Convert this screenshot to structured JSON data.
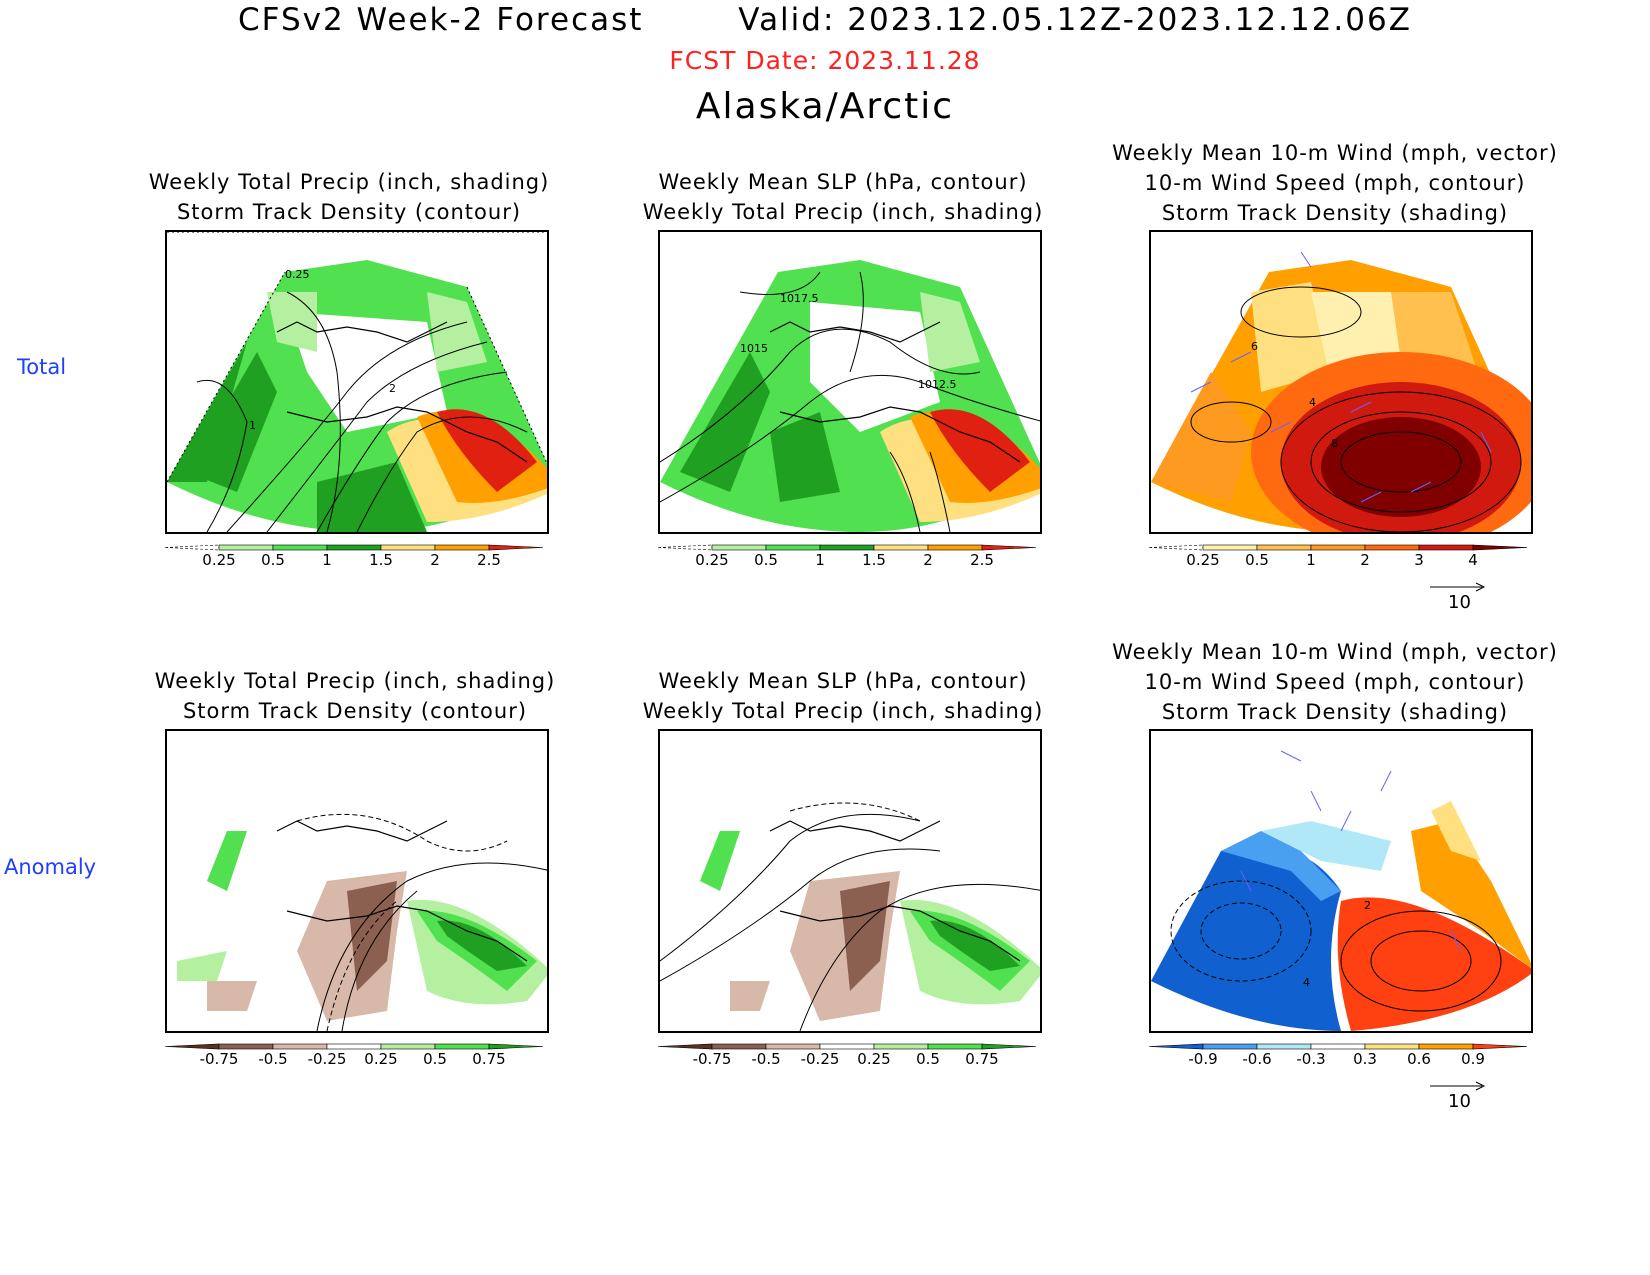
{
  "header": {
    "title_left": "CFSv2 Week-2 Forecast",
    "title_right": "Valid: 2023.12.05.12Z-2023.12.12.06Z",
    "fcst_date": "FCST Date: 2023.11.28",
    "region": "Alaska/Arctic"
  },
  "rows": {
    "total": "Total",
    "anomaly": "Anomaly"
  },
  "panels": {
    "total_precip": {
      "line1": "Weekly Total Precip (inch, shading)",
      "line2": "Storm Track Density (contour)",
      "labels": [
        "0.25",
        "2",
        "1"
      ]
    },
    "total_slp": {
      "line1": "Weekly Mean SLP (hPa, contour)",
      "line2": "Weekly Total Precip (inch, shading)",
      "labels": [
        "1017.5",
        "1015",
        "1012.5"
      ]
    },
    "total_wind": {
      "line1": "Weekly Mean 10-m Wind (mph, vector)",
      "line2": "10-m Wind Speed (mph, contour)",
      "line3": "Storm Track Density (shading)",
      "labels": [
        "6",
        "4",
        "8"
      ]
    },
    "anom_precip": {
      "line1": "Weekly Total Precip (inch, shading)",
      "line2": "Storm Track Density (contour)"
    },
    "anom_slp": {
      "line1": "Weekly Mean SLP (hPa, contour)",
      "line2": "Weekly Total Precip (inch, shading)"
    },
    "anom_wind": {
      "line1": "Weekly Mean 10-m Wind (mph, vector)",
      "line2": "10-m Wind Speed (mph, contour)",
      "line3": "Storm Track Density (shading)",
      "labels": [
        "2",
        "4"
      ]
    }
  },
  "colorbars": {
    "precip_total": {
      "ticks": [
        "0.25",
        "0.5",
        "1",
        "1.5",
        "2",
        "2.5"
      ],
      "colors": [
        "#ffffff",
        "#b4f0a0",
        "#50e050",
        "#20a020",
        "#ffe080",
        "#ffa000",
        "#e02010"
      ]
    },
    "std_total": {
      "ticks": [
        "0.25",
        "0.5",
        "1",
        "2",
        "3",
        "4"
      ],
      "colors": [
        "#ffffff",
        "#fff0b0",
        "#ffc050",
        "#ff9a20",
        "#ff6a10",
        "#d01a10",
        "#800000"
      ]
    },
    "precip_anom": {
      "ticks": [
        "-0.75",
        "-0.5",
        "-0.25",
        "0.25",
        "0.5",
        "0.75"
      ],
      "colors": [
        "#5a3020",
        "#8b6050",
        "#d8b8a8",
        "#ffffff",
        "#b4f0a0",
        "#50e050",
        "#20a020"
      ]
    },
    "std_anom": {
      "ticks": [
        "-0.9",
        "-0.6",
        "-0.3",
        "0.3",
        "0.6",
        "0.9"
      ],
      "colors": [
        "#1060d0",
        "#4aa0f0",
        "#b0e8f8",
        "#ffffff",
        "#ffe080",
        "#ffa000",
        "#ff4010"
      ]
    }
  },
  "ref_vector": {
    "label": "10"
  },
  "colors": {
    "vector": "#6464ff",
    "title_red": "#ff2020",
    "row_label_blue": "#1f3fff"
  }
}
